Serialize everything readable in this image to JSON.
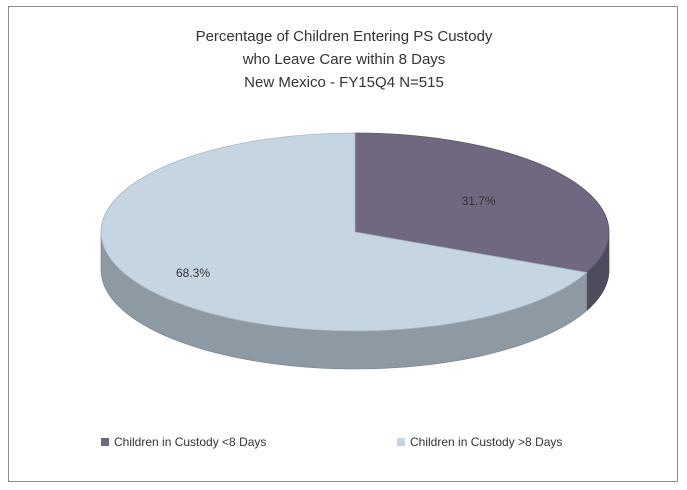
{
  "chart_data": {
    "type": "pie",
    "title_lines": [
      "Percentage of Children Entering PS Custody",
      "who Leave Care within 8 Days",
      "New Mexico - FY15Q4    N=515"
    ],
    "slices": [
      {
        "label": "Children in Custody <8 Days",
        "value": 31.7,
        "value_label": "31.7%",
        "color": "#6f6880"
      },
      {
        "label": "Children in Custody >8 Days",
        "value": 68.3,
        "value_label": "68.3%",
        "color": "#c5d6e2"
      }
    ],
    "legend_position": "bottom",
    "style": "3d"
  }
}
